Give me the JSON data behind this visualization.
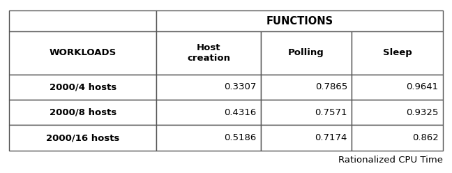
{
  "title": "FUNCTIONS",
  "subtitle": "Rationalized CPU Time",
  "col_headers_row0": [
    "",
    "FUNCTIONS"
  ],
  "col_headers_row1": [
    "WORKLOADS",
    "Host\ncreation",
    "Polling",
    "Sleep"
  ],
  "row_labels": [
    "2000/4 hosts",
    "2000/8 hosts",
    "2000/16 hosts"
  ],
  "data": [
    [
      "0.3307",
      "0.7865",
      "0.9641"
    ],
    [
      "0.4316",
      "0.7571",
      "0.9325"
    ],
    [
      "0.5186",
      "0.7174",
      "0.862"
    ]
  ],
  "background_color": "#ffffff",
  "line_color": "#555555",
  "text_color": "#000000",
  "font_size": 9.5,
  "title_font_size": 10.5,
  "subtitle_font_size": 9.5
}
